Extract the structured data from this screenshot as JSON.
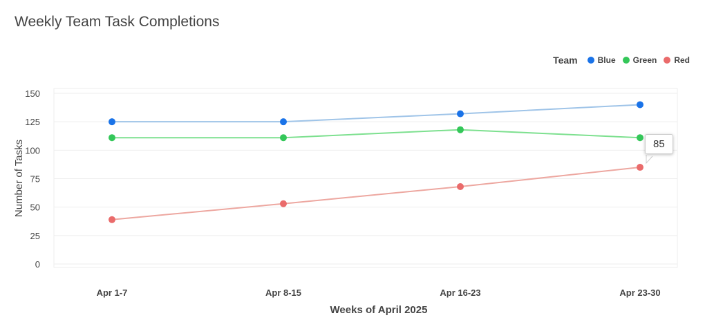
{
  "chart_data": {
    "type": "line",
    "title": "Weekly Team Task Completions",
    "xlabel": "Weeks of April 2025",
    "ylabel": "Number of Tasks",
    "categories": [
      "Apr 1-7",
      "Apr 8-15",
      "Apr 16-23",
      "Apr 23-30"
    ],
    "ylim": [
      0,
      150
    ],
    "yticks": [
      "0",
      "25",
      "50",
      "75",
      "100",
      "125",
      "150"
    ],
    "grid": true,
    "legend": {
      "title": "Team",
      "placement": "top-right"
    },
    "series": [
      {
        "name": "Blue",
        "values": [
          125,
          125,
          132,
          140
        ],
        "color": "#1a73e8",
        "line_color": "#9fc4e8"
      },
      {
        "name": "Green",
        "values": [
          111,
          111,
          118,
          111
        ],
        "color": "#34c759",
        "line_color": "#7de08f"
      },
      {
        "name": "Red",
        "values": [
          39,
          53,
          68,
          85
        ],
        "color": "#ea6b6b",
        "line_color": "#eda7a0"
      }
    ],
    "tooltip": {
      "series": "Red",
      "category": "Apr 23-30",
      "value": "85"
    }
  }
}
